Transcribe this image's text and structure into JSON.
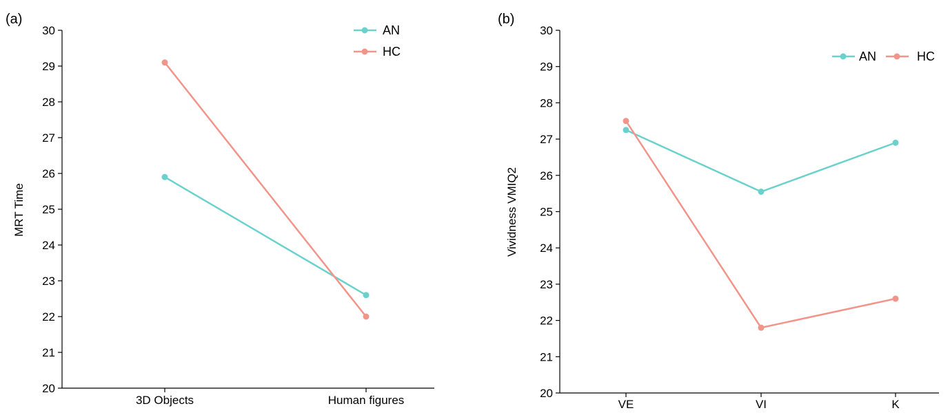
{
  "chart_data": [
    {
      "type": "line",
      "panel_label": "(a)",
      "title": "",
      "xlabel": "",
      "ylabel": "MRT Time",
      "categories": [
        "3D Objects",
        "Human figures"
      ],
      "ylim": [
        20,
        30
      ],
      "yticks": [
        "20",
        "21",
        "22",
        "23",
        "24",
        "25",
        "26",
        "27",
        "28",
        "29",
        "30"
      ],
      "grid": false,
      "legend": "top-right-stacked",
      "series": [
        {
          "name": "AN",
          "color": "#6bd1cd",
          "values": [
            25.9,
            22.6
          ]
        },
        {
          "name": "HC",
          "color": "#f2948a",
          "values": [
            29.1,
            22.0
          ]
        }
      ]
    },
    {
      "type": "line",
      "panel_label": "(b)",
      "title": "",
      "xlabel": "",
      "ylabel": "Vividness VMIQ2",
      "categories": [
        "VE",
        "VI",
        "K"
      ],
      "ylim": [
        20,
        30
      ],
      "yticks": [
        "20",
        "21",
        "22",
        "23",
        "24",
        "25",
        "26",
        "27",
        "28",
        "29",
        "30"
      ],
      "grid": false,
      "legend": "top-right-inline",
      "series": [
        {
          "name": "AN",
          "color": "#6bd1cd",
          "values": [
            27.25,
            25.55,
            26.9
          ]
        },
        {
          "name": "HC",
          "color": "#f2948a",
          "values": [
            27.5,
            21.8,
            22.6
          ]
        }
      ]
    }
  ]
}
